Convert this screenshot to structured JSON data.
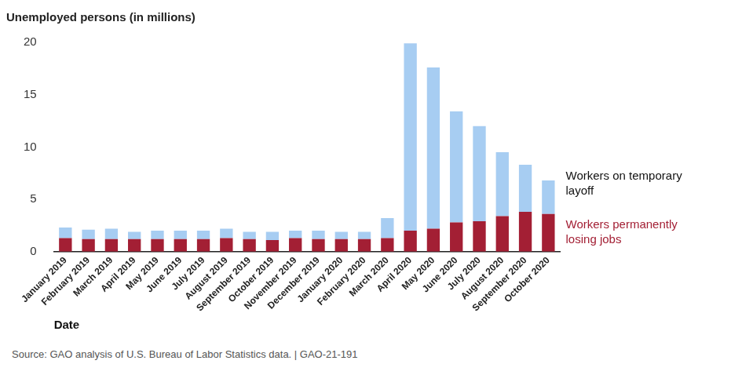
{
  "chart_data": {
    "type": "bar",
    "title": "Unemployed persons (in millions)",
    "x_label": "Date",
    "source": "Source: GAO analysis of U.S. Bureau of Labor Statistics data.  |  GAO-21-191",
    "categories": [
      "January 2019",
      "February 2019",
      "March 2019",
      "April 2019",
      "May 2019",
      "June 2019",
      "July 2019",
      "August 2019",
      "September 2019",
      "October 2019",
      "November 2019",
      "December 2019",
      "January 2020",
      "February 2020",
      "March 2020",
      "April 2020",
      "May 2020",
      "June 2020",
      "July 2020",
      "August 2020",
      "September 2020",
      "October 2020"
    ],
    "series": [
      {
        "name": "Workers permanently losing jobs",
        "color": "#a31f34",
        "values": [
          1.3,
          1.2,
          1.2,
          1.2,
          1.2,
          1.2,
          1.2,
          1.3,
          1.2,
          1.1,
          1.3,
          1.2,
          1.2,
          1.2,
          1.3,
          2.0,
          2.2,
          2.8,
          2.9,
          3.4,
          3.8,
          3.6
        ]
      },
      {
        "name": "Workers on temporary layoff",
        "color": "#a7cdf2",
        "values": [
          1.0,
          0.9,
          1.0,
          0.7,
          0.8,
          0.8,
          0.8,
          0.9,
          0.7,
          0.8,
          0.7,
          0.8,
          0.7,
          0.7,
          1.9,
          17.9,
          15.4,
          10.6,
          9.1,
          6.1,
          4.5,
          3.2
        ]
      }
    ],
    "ylim": [
      0,
      20
    ],
    "yticks": [
      0,
      5,
      10,
      15,
      20
    ],
    "stacked": true,
    "grid": false
  }
}
